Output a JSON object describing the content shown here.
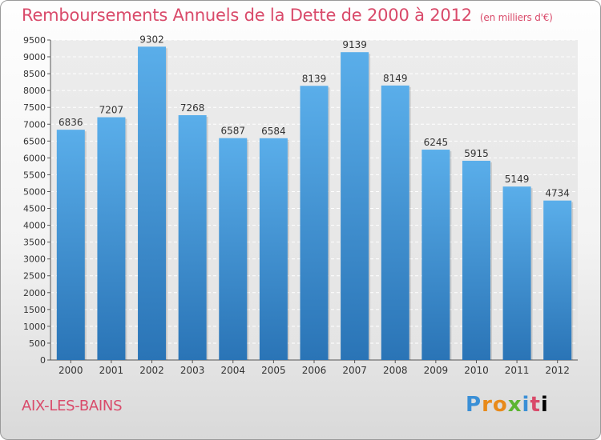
{
  "header": {
    "title": "Remboursements Annuels de la Dette de 2000 à 2012",
    "subtitle": "(en milliers d'€)"
  },
  "footer": {
    "city": "AIX-LES-BAINS",
    "logo": "Proxiti"
  },
  "colors": {
    "bar_top": "#5aaeea",
    "bar_bottom": "#2a74b6",
    "title": "#d94a6a"
  },
  "chart_data": {
    "type": "bar",
    "categories": [
      "2000",
      "2001",
      "2002",
      "2003",
      "2004",
      "2005",
      "2006",
      "2007",
      "2008",
      "2009",
      "2010",
      "2011",
      "2012"
    ],
    "values": [
      6836,
      7207,
      9302,
      7268,
      6587,
      6584,
      8139,
      9139,
      8149,
      6245,
      5915,
      5149,
      4734
    ],
    "title": "Remboursements Annuels de la Dette de 2000 à 2012",
    "ylim": [
      0,
      9500
    ],
    "yticks": [
      0,
      500,
      1000,
      1500,
      2000,
      2500,
      3000,
      3500,
      4000,
      4500,
      5000,
      5500,
      6000,
      6500,
      7000,
      7500,
      8000,
      8500,
      9000,
      9500
    ],
    "grid": true
  }
}
